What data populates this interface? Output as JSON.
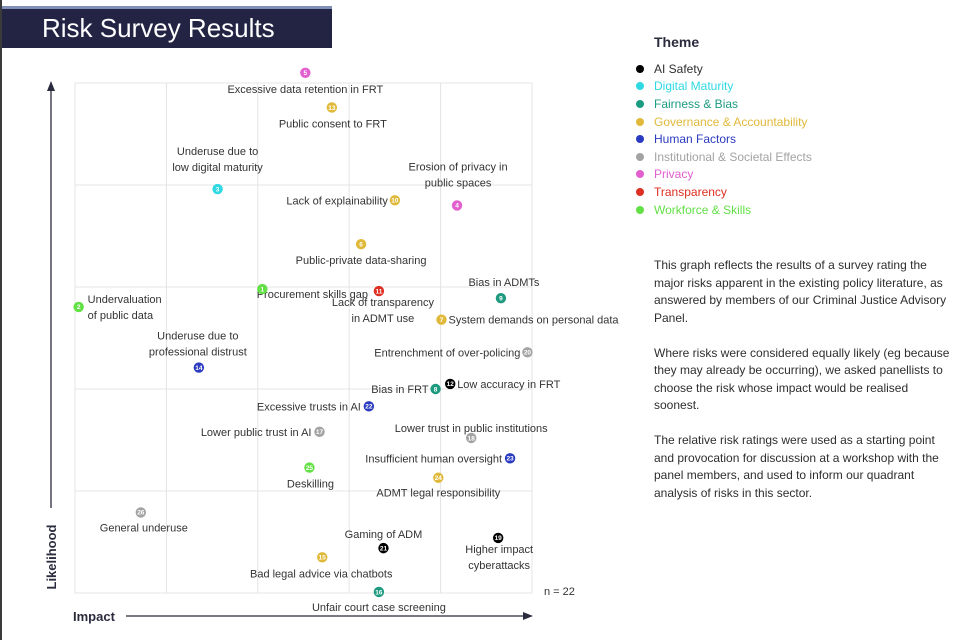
{
  "page_title": "Risk Survey Results",
  "legend": {
    "title": "Theme",
    "items": [
      {
        "label": "AI Safety",
        "color": "#000000"
      },
      {
        "label": "Digital Maturity",
        "color": "#2fd8e2"
      },
      {
        "label": "Fairness & Bias",
        "color": "#1d9a80"
      },
      {
        "label": "Governance & Accountability",
        "color": "#e0b93a"
      },
      {
        "label": "Human Factors",
        "color": "#2b3bbf"
      },
      {
        "label": "Institutional & Societal Effects",
        "color": "#a3a3a3"
      },
      {
        "label": "Privacy",
        "color": "#e25fd0"
      },
      {
        "label": "Transparency",
        "color": "#dd2f22"
      },
      {
        "label": "Workforce & Skills",
        "color": "#63e046"
      }
    ]
  },
  "description": [
    "This graph reflects the results of a survey rating the major risks apparent in the existing policy literature, as answered by members of our Criminal Justice Advisory Panel.",
    "Where risks were considered equally likely (eg because they may already be occurring), we asked panellists to choose the risk whose impact would be realised soonest.",
    "The relative risk ratings were used as a starting point and provocation for discussion at a workshop with the panel members, and used to inform our quadrant analysis of risks in this sector."
  ],
  "chart_data": {
    "type": "scatter",
    "xlabel": "Impact",
    "ylabel": "Likelihood",
    "note": "n = 22",
    "xlim": [
      0,
      100
    ],
    "ylim": [
      0,
      100
    ],
    "grid": true,
    "legend_position": "right",
    "points": [
      {
        "id": "1",
        "label": "Procurement skills gap",
        "theme": "Workforce & Skills",
        "x": 41.0,
        "y": 59.6
      },
      {
        "id": "2",
        "label": "Undervaluation of public data",
        "theme": "Workforce & Skills",
        "x": 0.8,
        "y": 56.1
      },
      {
        "id": "3",
        "label": "Underuse due to low digital maturity",
        "theme": "Digital Maturity",
        "x": 31.2,
        "y": 79.2
      },
      {
        "id": "4",
        "label": "Erosion of privacy in public spaces",
        "theme": "Privacy",
        "x": 83.6,
        "y": 76.0
      },
      {
        "id": "5",
        "label": "Excessive data retention in FRT",
        "theme": "Privacy",
        "x": 50.4,
        "y": 102.0
      },
      {
        "id": "6",
        "label": "Public-private data-sharing",
        "theme": "Governance & Accountability",
        "x": 62.6,
        "y": 68.4
      },
      {
        "id": "7",
        "label": "System demands on personal data",
        "theme": "Governance & Accountability",
        "x": 80.2,
        "y": 53.6
      },
      {
        "id": "8",
        "label": "Bias in FRT",
        "theme": "Fairness & Bias",
        "x": 78.9,
        "y": 40.0
      },
      {
        "id": "9",
        "label": "Bias in ADMTs",
        "theme": "Fairness & Bias",
        "x": 93.2,
        "y": 57.8
      },
      {
        "id": "10",
        "label": "Lack of explainability",
        "theme": "Governance & Accountability",
        "x": 70.0,
        "y": 77.0
      },
      {
        "id": "11",
        "label": "Lack of transparency in ADMT use",
        "theme": "Transparency",
        "x": 66.5,
        "y": 59.2
      },
      {
        "id": "12",
        "label": "Low accuracy in FRT",
        "theme": "AI Safety",
        "x": 82.1,
        "y": 41.0
      },
      {
        "id": "13",
        "label": "Public consent to FRT",
        "theme": "Governance & Accountability",
        "x": 56.2,
        "y": 95.2
      },
      {
        "id": "14",
        "label": "Underuse due to professional distrust",
        "theme": "Human Factors",
        "x": 27.1,
        "y": 44.2
      },
      {
        "id": "15",
        "label": "Bad legal advice via chatbots",
        "theme": "Governance & Accountability",
        "x": 54.1,
        "y": 7.0
      },
      {
        "id": "16",
        "label": "Unfair court case screening",
        "theme": "Fairness & Bias",
        "x": 66.5,
        "y": 0.2
      },
      {
        "id": "17",
        "label": "Lower public trust in AI",
        "theme": "Institutional & Societal Effects",
        "x": 53.5,
        "y": 31.6
      },
      {
        "id": "18",
        "label": "Lower trust in public institutions",
        "theme": "Institutional & Societal Effects",
        "x": 86.7,
        "y": 30.4
      },
      {
        "id": "19",
        "label": "Higher impact cyberattacks",
        "theme": "AI Safety",
        "x": 92.6,
        "y": 10.8
      },
      {
        "id": "20",
        "label": "Entrenchment of over-policing",
        "theme": "Institutional & Societal Effects",
        "x": 99.0,
        "y": 47.2
      },
      {
        "id": "21",
        "label": "Gaming of ADM",
        "theme": "AI Safety",
        "x": 67.5,
        "y": 8.8
      },
      {
        "id": "22",
        "label": "Excessive trusts in AI",
        "theme": "Human Factors",
        "x": 64.3,
        "y": 36.6
      },
      {
        "id": "23",
        "label": "Insufficient human oversight",
        "theme": "Human Factors",
        "x": 95.2,
        "y": 26.4
      },
      {
        "id": "24",
        "label": "ADMT legal responsibility",
        "theme": "Governance & Accountability",
        "x": 79.5,
        "y": 22.6
      },
      {
        "id": "25",
        "label": "Deskilling",
        "theme": "Workforce & Skills",
        "x": 51.3,
        "y": 24.6
      },
      {
        "id": "26",
        "label": "General underuse",
        "theme": "Institutional & Societal Effects",
        "x": 14.4,
        "y": 15.8
      }
    ]
  }
}
